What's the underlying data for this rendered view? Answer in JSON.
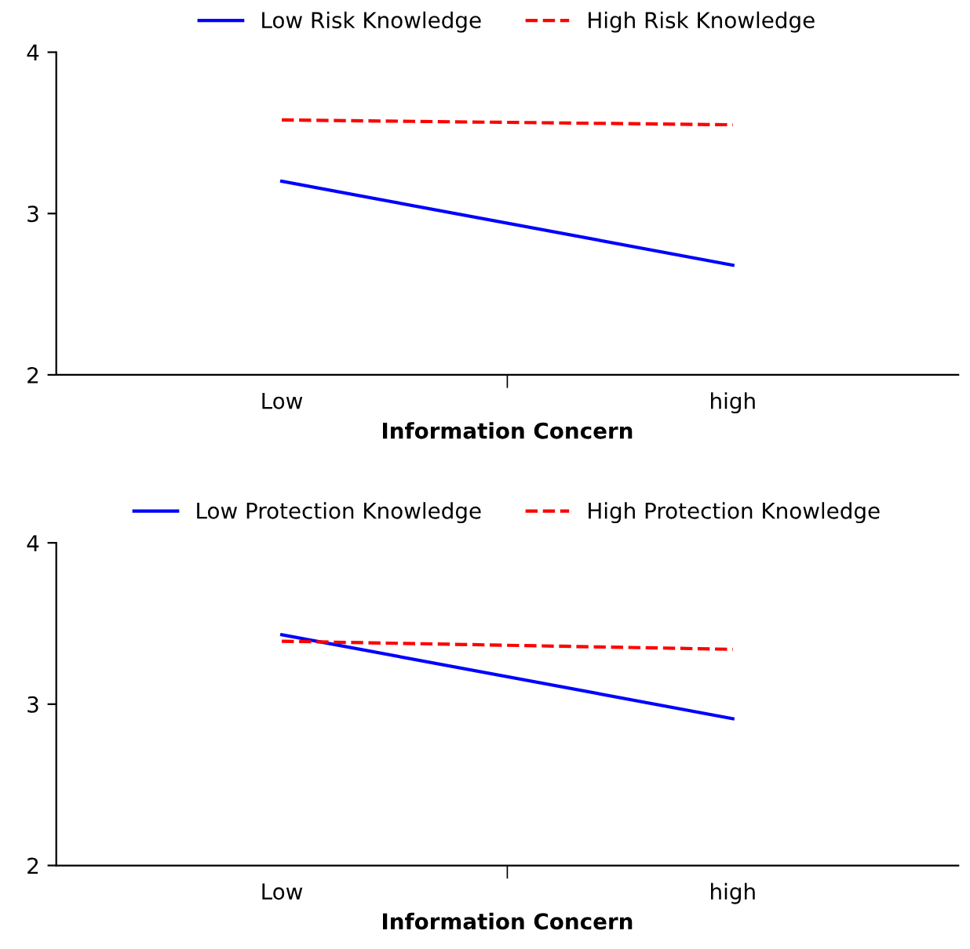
{
  "chart_data": [
    {
      "type": "line",
      "xlabel": "Information Concern",
      "categories": [
        "Low",
        "high"
      ],
      "ylim": [
        2,
        4
      ],
      "yticks": [
        2,
        3,
        4
      ],
      "legend": "top",
      "grid": false,
      "marker": "none",
      "series": [
        {
          "name": "Low Risk Knowledge",
          "color": "#0000ff",
          "values": [
            3.2,
            2.68
          ],
          "line_style": "solid"
        },
        {
          "name": "High Risk Knowledge",
          "color": "#ff0000",
          "values": [
            3.58,
            3.55
          ],
          "line_style": "dashed"
        }
      ]
    },
    {
      "type": "line",
      "xlabel": "Information Concern",
      "categories": [
        "Low",
        "high"
      ],
      "ylim": [
        2,
        4
      ],
      "yticks": [
        2,
        3,
        4
      ],
      "legend": "top",
      "grid": false,
      "marker": "none",
      "series": [
        {
          "name": "Low Protection Knowledge",
          "color": "#0000ff",
          "values": [
            3.43,
            2.91
          ],
          "line_style": "solid"
        },
        {
          "name": "High Protection Knowledge",
          "color": "#ff0000",
          "values": [
            3.39,
            3.34
          ],
          "line_style": "dashed"
        }
      ]
    }
  ]
}
